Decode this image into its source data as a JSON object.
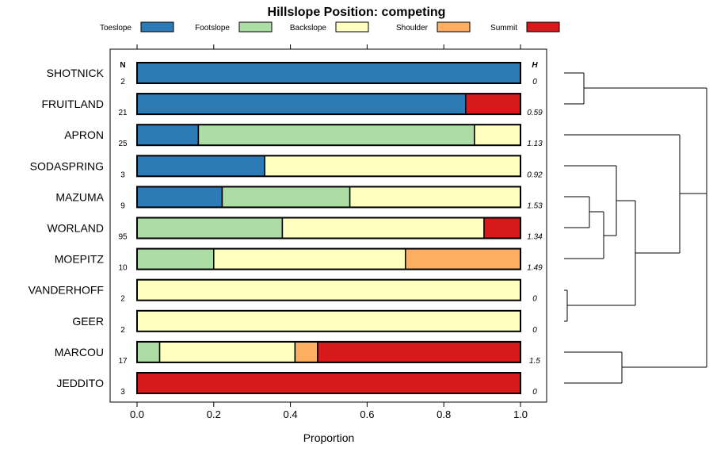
{
  "chart_data": {
    "type": "bar",
    "orientation": "horizontal-stacked",
    "title": "Hillslope Position: competing",
    "xlabel": "Proportion",
    "xlim": [
      0,
      1
    ],
    "xticks": [
      "0.0",
      "0.2",
      "0.4",
      "0.6",
      "0.8",
      "1.0"
    ],
    "xtick_values": [
      0,
      0.2,
      0.4,
      0.6,
      0.8,
      1.0
    ],
    "n_header": "N",
    "h_header": "H",
    "legend_placement": "top",
    "series": [
      {
        "name": "Toeslope",
        "color": "#2C7BB6"
      },
      {
        "name": "Footslope",
        "color": "#ABDDA4"
      },
      {
        "name": "Backslope",
        "color": "#FFFFBF"
      },
      {
        "name": "Shoulder",
        "color": "#FDAE61"
      },
      {
        "name": "Summit",
        "color": "#D7191C"
      }
    ],
    "categories": [
      "SHOTNICK",
      "FRUITLAND",
      "APRON",
      "SODASPRING",
      "MAZUMA",
      "WORLAND",
      "MOEPITZ",
      "VANDERHOFF",
      "GEER",
      "MARCOU",
      "JEDDITO"
    ],
    "n": [
      "2",
      "21",
      "25",
      "3",
      "9",
      "95",
      "10",
      "2",
      "2",
      "17",
      "3"
    ],
    "h": [
      "0",
      "0.59",
      "1.13",
      "0.92",
      "1.53",
      "1.34",
      "1.49",
      "0",
      "0",
      "1.5",
      "0"
    ],
    "values": [
      [
        1,
        0,
        0,
        0,
        0
      ],
      [
        0.857,
        0,
        0,
        0,
        0.143
      ],
      [
        0.16,
        0.72,
        0.12,
        0,
        0
      ],
      [
        0.333,
        0,
        0.667,
        0,
        0
      ],
      [
        0.222,
        0.333,
        0.445,
        0,
        0
      ],
      [
        0,
        0.379,
        0.526,
        0,
        0.095
      ],
      [
        0,
        0.2,
        0.5,
        0.3,
        0
      ],
      [
        0,
        0,
        1,
        0,
        0
      ],
      [
        0,
        0,
        1,
        0,
        0
      ],
      [
        0,
        0.059,
        0.353,
        0.059,
        0.529
      ],
      [
        0,
        0,
        0,
        0,
        1
      ]
    ]
  }
}
